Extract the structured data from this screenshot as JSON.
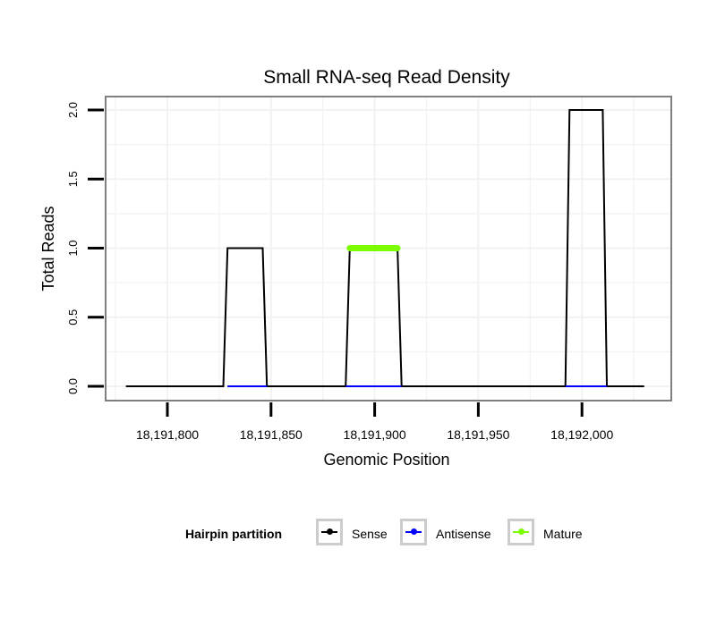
{
  "chart_data": {
    "type": "line",
    "title": "Small RNA-seq Read Density",
    "xlabel": "Genomic Position",
    "ylabel": "Total Reads",
    "xlim": [
      18191775,
      18192030
    ],
    "ylim": [
      0,
      2.0
    ],
    "x_ticks": [
      18191800,
      18191850,
      18191900,
      18191950,
      18192000
    ],
    "x_tick_labels": [
      "18,191,800",
      "18,191,850",
      "18,191,900",
      "18,191,950",
      "18,192,000"
    ],
    "y_ticks": [
      0.0,
      0.5,
      1.0,
      1.5,
      2.0
    ],
    "y_tick_labels": [
      "0.0",
      "0.5",
      "1.0",
      "1.5",
      "2.0"
    ],
    "grid": true,
    "legend_position": "bottom",
    "series": [
      {
        "name": "Sense",
        "color": "#000000",
        "x": [
          18191780,
          18191827,
          18191829,
          18191846,
          18191848,
          18191886,
          18191888,
          18191911,
          18191913,
          18191992,
          18191994,
          18192010,
          18192012,
          18192030
        ],
        "y": [
          0,
          0,
          1,
          1,
          0,
          0,
          1,
          1,
          0,
          0,
          2,
          2,
          0,
          0
        ]
      },
      {
        "name": "Antisense",
        "color": "#0000ff",
        "x": [
          18191829,
          18191848,
          18191886,
          18191913,
          18191992,
          18192012
        ],
        "y": [
          0,
          0,
          0,
          0,
          0,
          0
        ]
      },
      {
        "name": "Mature",
        "color": "#7cfc00",
        "x": [
          18191888,
          18191911
        ],
        "y": [
          1,
          1
        ]
      }
    ]
  },
  "legend": {
    "title": "Hairpin partition",
    "items": [
      {
        "label": "Sense",
        "color": "#000000"
      },
      {
        "label": "Antisense",
        "color": "#0000ff"
      },
      {
        "label": "Mature",
        "color": "#7cfc00"
      }
    ]
  }
}
